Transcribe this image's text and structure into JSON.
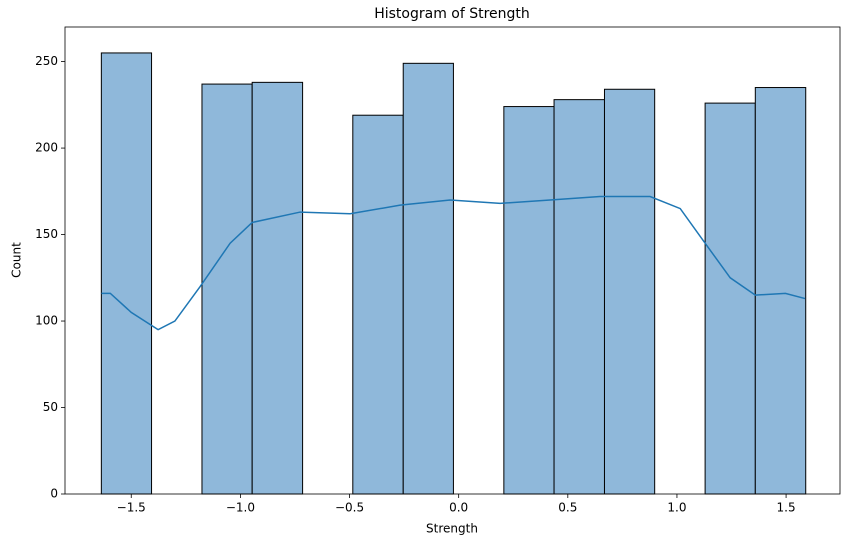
{
  "chart_data": {
    "type": "histogram",
    "title": "Histogram of Strength",
    "xlabel": "Strength",
    "ylabel": "Count",
    "bins": [
      -1.637,
      -1.407,
      -1.176,
      -0.946,
      -0.715,
      -0.485,
      -0.254,
      -0.024,
      0.207,
      0.437,
      0.668,
      0.898,
      1.129,
      1.359,
      1.59
    ],
    "values": [
      255,
      0,
      237,
      238,
      0,
      219,
      249,
      0,
      224,
      228,
      234,
      0,
      226,
      235
    ],
    "color": "#8fb8da",
    "edge_color": "#000000",
    "kde": {
      "color": "#1f77b4",
      "x": [
        -1.637,
        -1.596,
        -1.5,
        -1.377,
        -1.3,
        -1.184,
        -1.047,
        -0.946,
        -0.726,
        -0.497,
        -0.268,
        -0.039,
        0.19,
        0.419,
        0.648,
        0.877,
        1.015,
        1.129,
        1.244,
        1.359,
        1.497,
        1.587
      ],
      "y": [
        116,
        116,
        105,
        95,
        100,
        120,
        145,
        157,
        163,
        162,
        167,
        170,
        168,
        170,
        172,
        172,
        165,
        145,
        125,
        115,
        116,
        113
      ]
    },
    "xlim": [
      -1.8035,
      1.747
    ],
    "ylim": [
      0,
      270
    ],
    "xticks": [
      {
        "value": -1.5,
        "label": "−1.5"
      },
      {
        "value": -1.0,
        "label": "−1.0"
      },
      {
        "value": -0.5,
        "label": "−0.5"
      },
      {
        "value": 0,
        "label": "0.0"
      },
      0.5,
      {
        "value": 1,
        "label": "1.0"
      },
      1.5
    ],
    "yticks": [
      0,
      50,
      100,
      150,
      200,
      250
    ]
  }
}
